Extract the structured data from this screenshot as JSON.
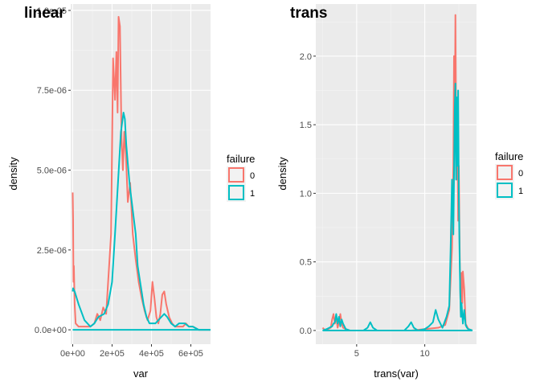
{
  "colors": {
    "panel": "#ebebeb",
    "grid_major": "#ffffff",
    "grid_minor": "#f5f5f5",
    "tick": "#333333",
    "series_0": "#f8766d",
    "series_1": "#00bfc4"
  },
  "legend": {
    "title": "failure",
    "items": [
      {
        "label": "0",
        "color": "#f8766d"
      },
      {
        "label": "1",
        "color": "#00bfc4"
      }
    ]
  },
  "chart_data": [
    {
      "type": "line",
      "title": "linear",
      "xlabel": "var",
      "ylabel": "density",
      "xlim": [
        -10000,
        700000
      ],
      "ylim": [
        -4.5e-07,
        1.02e-05
      ],
      "x_ticks": [
        0,
        200000,
        400000,
        600000
      ],
      "x_tick_labels": [
        "0e+00",
        "2e+05",
        "4e+05",
        "6e+05"
      ],
      "y_ticks": [
        0,
        2.5e-06,
        5e-06,
        7.5e-06,
        1e-05
      ],
      "y_tick_labels": [
        "0.0e+00",
        "2.5e-06",
        "5.0e-06",
        "7.5e-06",
        "1.0e-05"
      ],
      "legend_position": "right",
      "grid": true,
      "series": [
        {
          "name": "0",
          "color": "#f8766d",
          "x": [
            0,
            2000,
            4000,
            6000,
            10000,
            15000,
            30000,
            60000,
            90000,
            110000,
            125000,
            140000,
            155000,
            170000,
            180000,
            195000,
            205000,
            215000,
            222000,
            228000,
            233000,
            240000,
            248000,
            255000,
            262000,
            270000,
            280000,
            292000,
            305000,
            320000,
            335000,
            350000,
            365000,
            380000,
            395000,
            405000,
            415000,
            425000,
            435000,
            445000,
            455000,
            465000,
            475000,
            490000,
            505000,
            520000,
            540000,
            560000,
            575000,
            590000,
            610000,
            640000,
            700000
          ],
          "y": [
            4.3e-06,
            3.5e-06,
            1.5e-06,
            2e-06,
            8e-07,
            2e-07,
            1e-07,
            1e-07,
            1e-07,
            2e-07,
            5e-07,
            3e-07,
            7e-07,
            5e-07,
            1.5e-06,
            3e-06,
            8.5e-06,
            7.2e-06,
            8.7e-06,
            6.8e-06,
            9.8e-06,
            9.5e-06,
            6e-06,
            5e-06,
            6.2e-06,
            5.5e-06,
            4e-06,
            4.6e-06,
            3e-06,
            2.2e-06,
            1.5e-06,
            1e-06,
            6e-07,
            3e-07,
            6e-07,
            1.5e-06,
            1e-06,
            4e-07,
            2e-07,
            5e-07,
            1.1e-06,
            1.2e-06,
            8e-07,
            4e-07,
            2e-07,
            1e-07,
            1e-07,
            1e-07,
            2e-07,
            1e-07,
            1e-07,
            0,
            0
          ]
        },
        {
          "name": "1",
          "color": "#00bfc4",
          "x": [
            0,
            2000,
            10000,
            30000,
            60000,
            90000,
            110000,
            130000,
            160000,
            180000,
            200000,
            215000,
            230000,
            245000,
            258000,
            265000,
            272000,
            280000,
            290000,
            300000,
            310000,
            320000,
            330000,
            345000,
            360000,
            375000,
            390000,
            405000,
            420000,
            435000,
            450000,
            465000,
            480000,
            500000,
            520000,
            540000,
            555000,
            570000,
            590000,
            610000,
            640000,
            700000
          ],
          "y": [
            1.2e-06,
            1.3e-06,
            1.2e-06,
            8e-07,
            3e-07,
            1e-07,
            2e-07,
            4e-07,
            5e-07,
            8e-07,
            1.5e-06,
            3e-06,
            4.6e-06,
            6.2e-06,
            6.8e-06,
            6.6e-06,
            5.8e-06,
            5.2e-06,
            4.5e-06,
            4e-06,
            3.5e-06,
            3e-06,
            2e-06,
            1.4e-06,
            8e-07,
            4e-07,
            2e-07,
            2e-07,
            2e-07,
            3e-07,
            4e-07,
            5e-07,
            4e-07,
            2e-07,
            1e-07,
            2e-07,
            2e-07,
            2e-07,
            1e-07,
            1e-07,
            0,
            0
          ]
        },
        {
          "name": "1",
          "color": "#00bfc4",
          "x": [
            0,
            700000
          ],
          "y": [
            0,
            0
          ]
        }
      ]
    },
    {
      "type": "line",
      "title": "trans",
      "xlabel": "trans(var)",
      "ylabel": "density",
      "xlim": [
        2.0,
        13.8
      ],
      "ylim": [
        -0.1,
        2.38
      ],
      "x_ticks": [
        5,
        10
      ],
      "x_tick_labels": [
        "5",
        "10"
      ],
      "y_ticks": [
        0,
        0.5,
        1.0,
        1.5,
        2.0
      ],
      "y_tick_labels": [
        "0.0",
        "0.5",
        "1.0",
        "1.5",
        "2.0"
      ],
      "legend_position": "right",
      "grid": true,
      "series": [
        {
          "name": "0",
          "color": "#f8766d",
          "x": [
            2.5,
            2.7,
            2.9,
            3.1,
            3.2,
            3.3,
            3.4,
            3.5,
            3.6,
            3.7,
            3.8,
            3.9,
            4.0,
            4.2,
            4.5,
            5.0,
            6.0,
            7.0,
            8.0,
            9.0,
            10.0,
            11.0,
            11.5,
            11.8,
            12.0,
            12.1,
            12.15,
            12.2,
            12.25,
            12.3,
            12.35,
            12.4,
            12.45,
            12.5,
            12.55,
            12.6,
            12.65,
            12.7,
            12.75,
            12.8,
            12.9,
            13.0,
            13.1,
            13.2,
            13.5
          ],
          "y": [
            0.02,
            0.0,
            0.01,
            0.02,
            0.08,
            0.12,
            0.05,
            0.1,
            0.02,
            0.06,
            0.12,
            0.05,
            0.02,
            0.01,
            0.0,
            0.0,
            0.0,
            0.0,
            0.0,
            0.0,
            0.01,
            0.02,
            0.04,
            0.15,
            0.6,
            1.2,
            2.0,
            1.4,
            2.3,
            1.5,
            1.1,
            1.6,
            0.8,
            1.2,
            0.7,
            0.3,
            0.1,
            0.42,
            0.2,
            0.43,
            0.3,
            0.05,
            0.03,
            0.01,
            0.0
          ]
        },
        {
          "name": "1",
          "color": "#00bfc4",
          "x": [
            2.5,
            2.8,
            3.0,
            3.2,
            3.3,
            3.4,
            3.5,
            3.6,
            3.7,
            3.8,
            3.9,
            4.0,
            4.2,
            4.5,
            5.0,
            5.5,
            5.8,
            6.0,
            6.2,
            6.5,
            7.0,
            7.5,
            8.0,
            8.5,
            8.8,
            9.0,
            9.2,
            9.5,
            10.0,
            10.3,
            10.6,
            10.8,
            11.0,
            11.3,
            11.6,
            11.8,
            11.9,
            12.0,
            12.1,
            12.2,
            12.25,
            12.3,
            12.35,
            12.4,
            12.45,
            12.5,
            12.55,
            12.6,
            12.65,
            12.7,
            12.8,
            12.9,
            13.0,
            13.1,
            13.2,
            13.5
          ],
          "y": [
            0.0,
            0.01,
            0.02,
            0.03,
            0.05,
            0.06,
            0.12,
            0.05,
            0.1,
            0.03,
            0.08,
            0.05,
            0.01,
            0.0,
            0.0,
            0.0,
            0.02,
            0.06,
            0.02,
            0.0,
            0.0,
            0.0,
            0.0,
            0.0,
            0.03,
            0.06,
            0.02,
            0.0,
            0.01,
            0.03,
            0.06,
            0.15,
            0.08,
            0.02,
            0.1,
            0.18,
            0.6,
            1.1,
            0.7,
            1.6,
            1.8,
            1.1,
            1.7,
            1.2,
            1.75,
            1.0,
            0.6,
            0.3,
            0.1,
            0.2,
            0.05,
            0.15,
            0.04,
            0.02,
            0.01,
            0.0
          ]
        },
        {
          "name": "1",
          "color": "#00bfc4",
          "x": [
            2.5,
            13.5
          ],
          "y": [
            0,
            0
          ]
        }
      ]
    }
  ]
}
